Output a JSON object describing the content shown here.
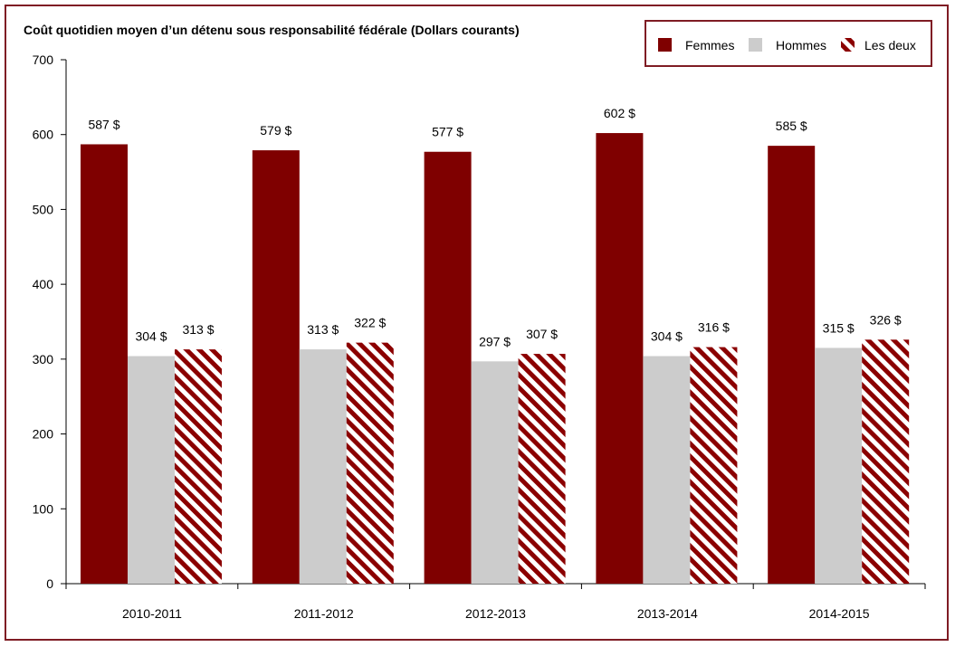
{
  "chart_data": {
    "type": "bar",
    "title": "Coût quotidien moyen d’un détenu sous responsabilité fédérale (Dollars courants)",
    "xlabel": "",
    "ylabel": "",
    "categories": [
      "2010-2011",
      "2011-2012",
      "2012-2013",
      "2013-2014",
      "2014-2015"
    ],
    "ylim": [
      0,
      700
    ],
    "yticks": [
      0,
      100,
      200,
      300,
      400,
      500,
      600,
      700
    ],
    "series": [
      {
        "name": "Femmes",
        "values": [
          587,
          579,
          577,
          602,
          585
        ],
        "labels": [
          "587 $",
          "579 $",
          "577 $",
          "602 $",
          "585 $"
        ],
        "color": "#7f0000",
        "fill": "solid"
      },
      {
        "name": "Hommes",
        "values": [
          304,
          313,
          297,
          304,
          315
        ],
        "labels": [
          "304 $",
          "313 $",
          "297 $",
          "304 $",
          "315 $"
        ],
        "color": "#cccccc",
        "fill": "solid"
      },
      {
        "name": "Les deux",
        "values": [
          313,
          322,
          307,
          316,
          326
        ],
        "labels": [
          "313 $",
          "322 $",
          "307 $",
          "316 $",
          "326 $"
        ],
        "color": "#8b0000",
        "fill": "hatched"
      }
    ],
    "grid": false,
    "legend": "top-right",
    "frame_color": "#7f1c24"
  }
}
